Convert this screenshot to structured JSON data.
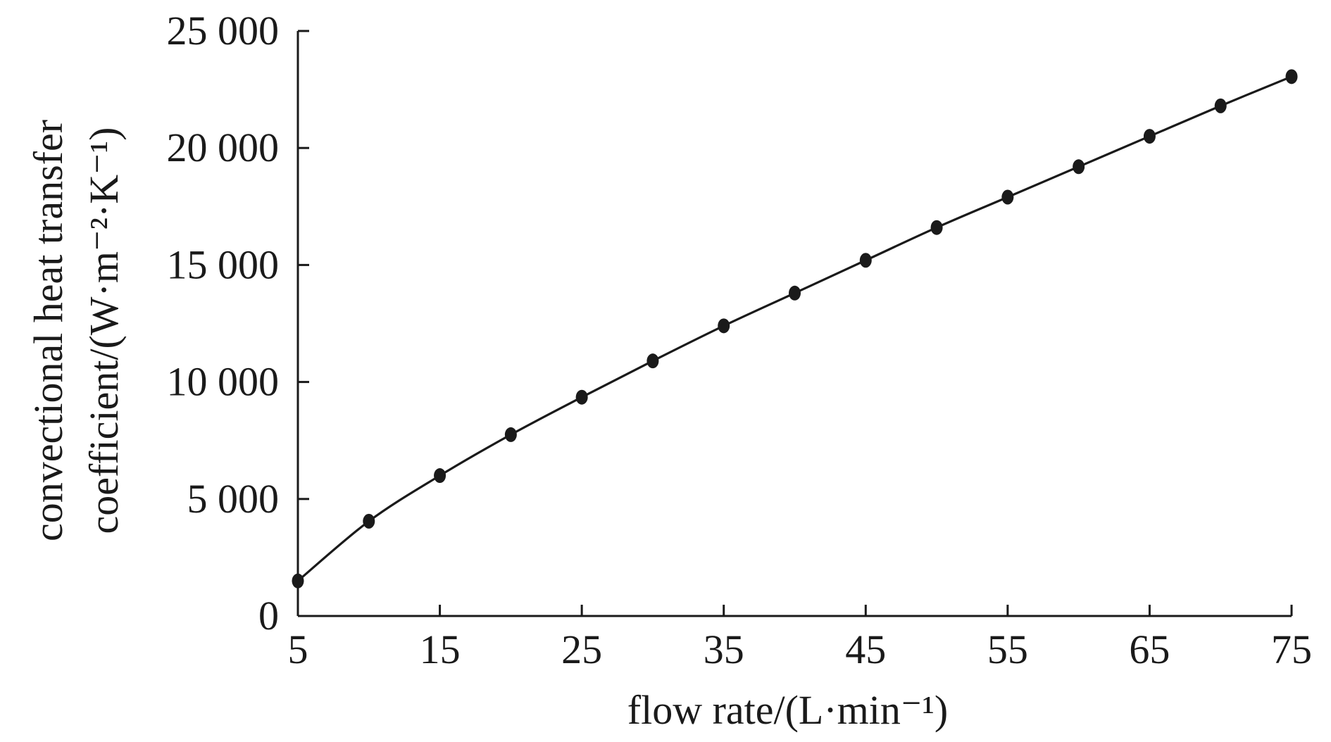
{
  "chart_data": {
    "type": "line",
    "title": "",
    "xlabel": "flow rate/(L·min⁻¹)",
    "ylabel_line1": "convectional heat transfer",
    "ylabel_line2": "coefficient/(W·m⁻²·K⁻¹)",
    "xlim": [
      5,
      75
    ],
    "ylim": [
      0,
      25000
    ],
    "xticks": [
      5,
      15,
      25,
      35,
      45,
      55,
      65,
      75
    ],
    "xtick_labels": [
      "5",
      "15",
      "25",
      "35",
      "45",
      "55",
      "65",
      "75"
    ],
    "yticks": [
      0,
      5000,
      10000,
      15000,
      20000,
      25000
    ],
    "ytick_labels": [
      "0",
      "5 000",
      "10 000",
      "15 000",
      "20 000",
      "25 000"
    ],
    "grid": false,
    "legend": "none",
    "series": [
      {
        "x": [
          5,
          10,
          15,
          20,
          25,
          30,
          35,
          40,
          45,
          50,
          55,
          60,
          65,
          70,
          75
        ],
        "y": [
          1500,
          4050,
          6000,
          7750,
          9350,
          10900,
          12400,
          13800,
          15200,
          16600,
          17900,
          19200,
          20500,
          21800,
          23050
        ],
        "color": "#1a1a1a"
      }
    ]
  }
}
